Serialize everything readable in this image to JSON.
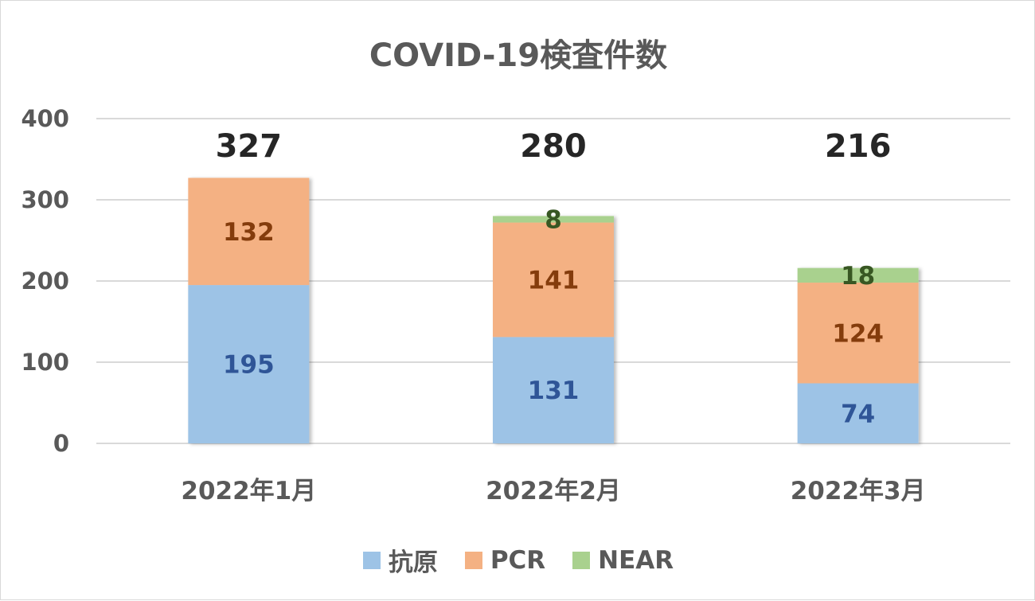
{
  "chart_data": {
    "type": "bar",
    "stacked": true,
    "title": "COVID-19検査件数",
    "categories": [
      "2022年1月",
      "2022年2月",
      "2022年3月"
    ],
    "series": [
      {
        "name": "抗原",
        "values": [
          195,
          131,
          74
        ],
        "color": "#9dc3e6",
        "label_color": "#2f5597"
      },
      {
        "name": "PCR",
        "values": [
          132,
          141,
          124
        ],
        "color": "#f4b183",
        "label_color": "#843c0c"
      },
      {
        "name": "NEAR",
        "values": [
          0,
          8,
          18
        ],
        "color": "#a9d18e",
        "label_color": "#385723"
      }
    ],
    "totals": [
      327,
      280,
      216
    ],
    "ylim": [
      0,
      400
    ],
    "yticks": [
      0,
      100,
      200,
      300,
      400
    ],
    "grid": true,
    "legend_position": "bottom"
  }
}
